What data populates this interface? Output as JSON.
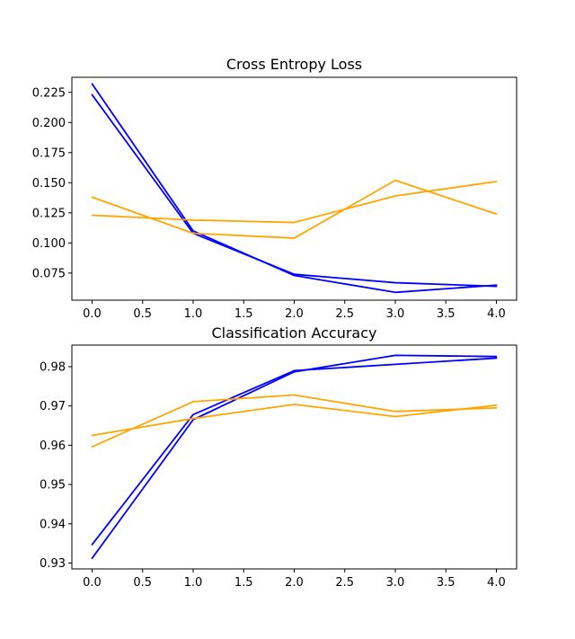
{
  "chart_data": [
    {
      "type": "line",
      "title": "Cross Entropy Loss",
      "xlabel": "",
      "ylabel": "",
      "x": [
        0,
        1,
        2,
        3,
        4
      ],
      "xlim": [
        -0.2,
        4.2
      ],
      "ylim": [
        0.0525,
        0.2375
      ],
      "xticks": [
        0,
        0.5,
        1,
        1.5,
        2,
        2.5,
        3,
        3.5,
        4
      ],
      "xtick_labels": [
        "0.0",
        "0.5",
        "1.0",
        "1.5",
        "2.0",
        "2.5",
        "3.0",
        "3.5",
        "4.0"
      ],
      "yticks": [
        0.075,
        0.1,
        0.125,
        0.15,
        0.175,
        0.2,
        0.225
      ],
      "ytick_labels": [
        "0.075",
        "0.100",
        "0.125",
        "0.150",
        "0.175",
        "0.200",
        "0.225"
      ],
      "grid": false,
      "series": [
        {
          "color": "#0000ff",
          "values": [
            0.232,
            0.11,
            0.073,
            0.059,
            0.065
          ]
        },
        {
          "color": "#0000ff",
          "values": [
            0.223,
            0.108,
            0.074,
            0.067,
            0.064
          ]
        },
        {
          "color": "#ffa500",
          "values": [
            0.138,
            0.108,
            0.104,
            0.152,
            0.124
          ]
        },
        {
          "color": "#ffa500",
          "values": [
            0.123,
            0.119,
            0.117,
            0.139,
            0.151
          ]
        }
      ]
    },
    {
      "type": "line",
      "title": "Classification Accuracy",
      "xlabel": "",
      "ylabel": "",
      "x": [
        0,
        1,
        2,
        3,
        4
      ],
      "xlim": [
        -0.2,
        4.2
      ],
      "ylim": [
        0.9285,
        0.9855
      ],
      "xticks": [
        0,
        0.5,
        1,
        1.5,
        2,
        2.5,
        3,
        3.5,
        4
      ],
      "xtick_labels": [
        "0.0",
        "0.5",
        "1.0",
        "1.5",
        "2.0",
        "2.5",
        "3.0",
        "3.5",
        "4.0"
      ],
      "yticks": [
        0.93,
        0.94,
        0.95,
        0.96,
        0.97,
        0.98
      ],
      "ytick_labels": [
        "0.93",
        "0.94",
        "0.95",
        "0.96",
        "0.97",
        "0.98"
      ],
      "grid": false,
      "series": [
        {
          "color": "#0000ff",
          "values": [
            0.9347,
            0.9678,
            0.979,
            0.9806,
            0.9822
          ]
        },
        {
          "color": "#0000ff",
          "values": [
            0.9312,
            0.9665,
            0.9787,
            0.9829,
            0.9826
          ]
        },
        {
          "color": "#ffa500",
          "values": [
            0.9625,
            0.9668,
            0.9704,
            0.9673,
            0.9702
          ]
        },
        {
          "color": "#ffa500",
          "values": [
            0.9596,
            0.9711,
            0.9728,
            0.9686,
            0.9695
          ]
        }
      ]
    }
  ]
}
